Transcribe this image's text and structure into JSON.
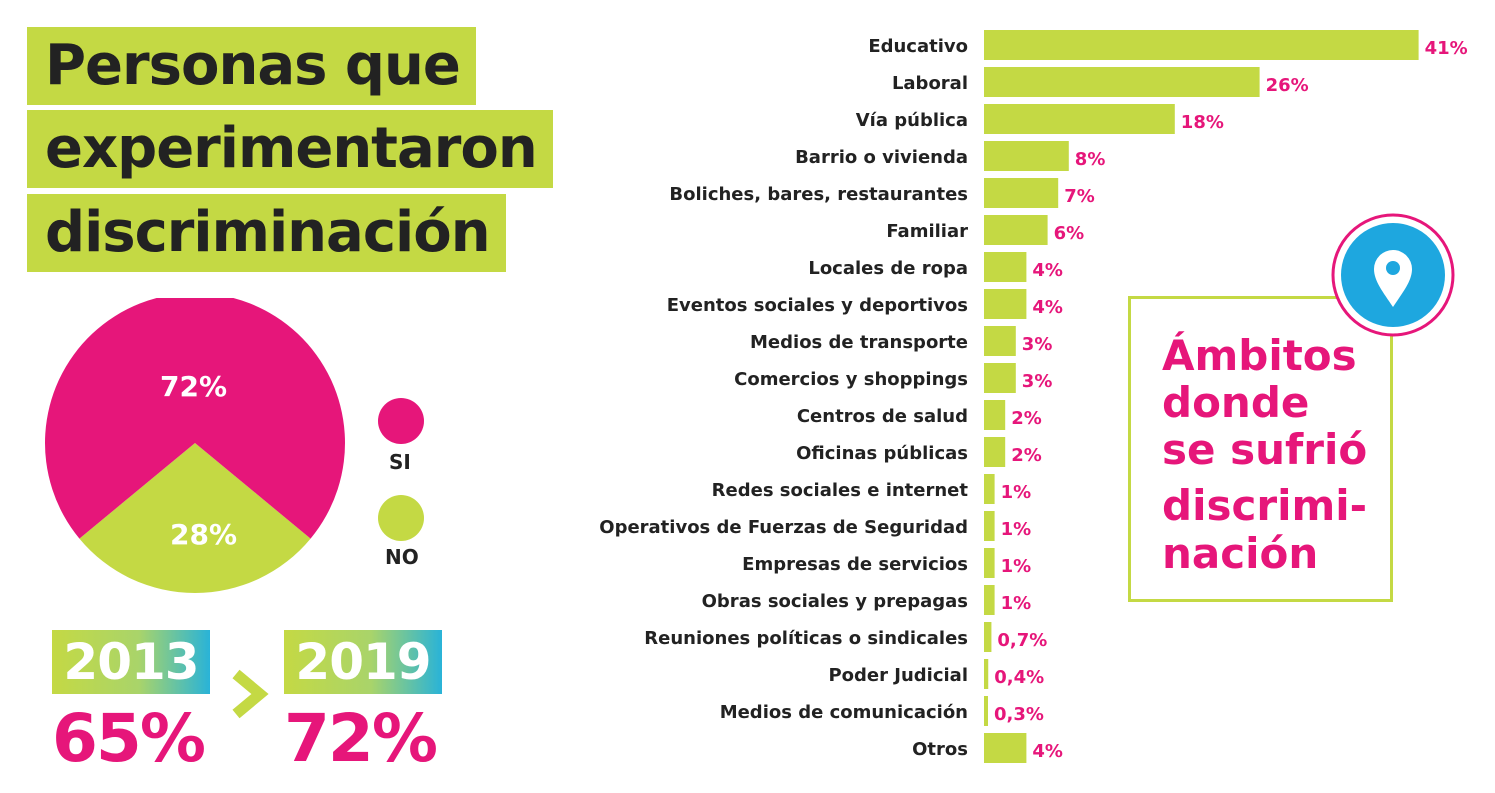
{
  "title_lines": [
    "Personas que",
    "experimentaron",
    "discriminación"
  ],
  "colors": {
    "pink": "#e6167a",
    "green": "#c4d944",
    "blue": "#1ea7df",
    "dark": "#222222"
  },
  "pie_legend": {
    "si": "SI",
    "no": "NO"
  },
  "comparison": {
    "year_a": "2013",
    "pct_a": "65%",
    "year_b": "2019",
    "pct_b": "72%",
    "arrow_icon": "chevron-right-icon"
  },
  "ambitos_label": [
    "Ámbitos",
    "donde",
    "se sufrió",
    "discrimi-",
    "nación"
  ],
  "pin_icon": "map-pin-icon",
  "chart_data": [
    {
      "type": "pie",
      "slices": [
        {
          "name": "SI",
          "value": 72,
          "label": "72%",
          "color": "#e6167a"
        },
        {
          "name": "NO",
          "value": 28,
          "label": "28%",
          "color": "#c4d944"
        }
      ]
    },
    {
      "type": "bar",
      "orientation": "horizontal",
      "categories": [
        "Educativo",
        "Laboral",
        "Vía pública",
        "Barrio o vivienda",
        "Boliches, bares, restaurantes",
        "Familiar",
        "Locales de ropa",
        "Eventos sociales y deportivos",
        "Medios de transporte",
        "Comercios y shoppings",
        "Centros de salud",
        "Oficinas públicas",
        "Redes sociales e internet",
        "Operativos de Fuerzas de Seguridad",
        "Empresas de servicios",
        "Obras sociales y prepagas",
        "Reuniones políticas o sindicales",
        "Poder Judicial",
        "Medios de comunicación",
        "Otros"
      ],
      "values": [
        41,
        26,
        18,
        8,
        7,
        6,
        4,
        4,
        3,
        3,
        2,
        2,
        1,
        1,
        1,
        1,
        0.7,
        0.4,
        0.3,
        4
      ],
      "value_labels": [
        "41%",
        "26%",
        "18%",
        "8%",
        "7%",
        "6%",
        "4%",
        "4%",
        "3%",
        "3%",
        "2%",
        "2%",
        "1%",
        "1%",
        "1%",
        "1%",
        "0,7%",
        "0,4%",
        "0,3%",
        "4%"
      ],
      "bar_color": "#c4d944",
      "label_color": "#e6167a"
    }
  ]
}
